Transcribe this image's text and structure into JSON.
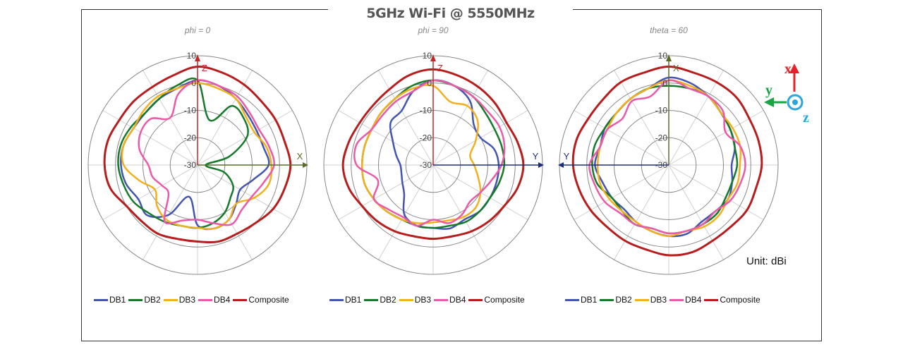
{
  "title": "5GHz Wi-Fi @ 5550MHz",
  "unit_label": "Unit: dBi",
  "colors": {
    "DB1": "#4455b0",
    "DB2": "#167a2a",
    "DB3": "#f2b01e",
    "DB4": "#ea5aa8",
    "Composite": "#b81d1d"
  },
  "coordinate_icon": {
    "x": "x",
    "y": "y",
    "z": "z",
    "x_color": "#e8202a",
    "y_color": "#1aa544",
    "z_color": "#2aa6dd"
  },
  "chart_data": [
    {
      "type": "polar",
      "title": "phi = 0",
      "r_ticks": [
        "10",
        "0",
        "-10",
        "-20",
        "-30"
      ],
      "rlim": [
        -30,
        10
      ],
      "angle_step_deg": 30,
      "axis_up": "Z",
      "axis_side": "X",
      "axis_side_dir": "right",
      "angles": [
        0,
        15,
        30,
        45,
        60,
        75,
        90,
        105,
        120,
        135,
        150,
        165,
        180,
        195,
        210,
        225,
        240,
        255,
        270,
        285,
        300,
        315,
        330,
        345
      ],
      "series": [
        {
          "name": "DB1",
          "values": [
            1,
            0,
            -2,
            -4,
            -5,
            -5,
            -4,
            -9,
            -12,
            -10,
            -7,
            -6,
            -8,
            -18,
            -9,
            -4,
            -5,
            -3,
            -2,
            -2,
            -3,
            -3,
            -2,
            -1
          ]
        },
        {
          "name": "DB2",
          "values": [
            1,
            -13,
            -5,
            -6,
            -9,
            -18,
            -27,
            -20,
            -15,
            -13,
            -10,
            -8,
            -7,
            -7,
            -6,
            -5,
            -3,
            -2,
            -1,
            -1,
            -2,
            -3,
            -2,
            0
          ]
        },
        {
          "name": "DB3",
          "values": [
            0,
            -1,
            -2,
            -5,
            -6,
            -4,
            -3,
            -3,
            -6,
            -10,
            -7,
            -6,
            -7,
            -7,
            -7,
            -9,
            -12,
            -8,
            -3,
            -2,
            -3,
            -2,
            -1,
            -1
          ]
        },
        {
          "name": "DB4",
          "values": [
            1,
            0,
            -1,
            -3,
            -4,
            -3,
            -2,
            -5,
            -7,
            -7,
            -5,
            -8,
            -10,
            -9,
            -6,
            -15,
            -15,
            -13,
            -12,
            -8,
            -6,
            -6,
            -10,
            -3
          ]
        },
        {
          "name": "Composite",
          "values": [
            6,
            5,
            4,
            3,
            3,
            3,
            4,
            3,
            2,
            0,
            -1,
            -1,
            -2,
            -2,
            -1,
            -1,
            0,
            3,
            4,
            4,
            3,
            3,
            3,
            4
          ]
        }
      ]
    },
    {
      "type": "polar",
      "title": "phi = 90",
      "r_ticks": [
        "10",
        "0",
        "-10",
        "-20",
        "-30"
      ],
      "rlim": [
        -30,
        10
      ],
      "angle_step_deg": 30,
      "axis_up": "Z",
      "axis_side": "Y",
      "axis_side_dir": "right",
      "angles": [
        0,
        15,
        30,
        45,
        60,
        75,
        90,
        105,
        120,
        135,
        150,
        165,
        180,
        195,
        210,
        225,
        240,
        255,
        270,
        285,
        300,
        315,
        330,
        345
      ],
      "series": [
        {
          "name": "DB1",
          "values": [
            1,
            0,
            -3,
            -9,
            -10,
            -7,
            -6,
            -6,
            -6,
            -6,
            -7,
            -6,
            -7,
            -7,
            -9,
            -15,
            -17,
            -18,
            -18,
            -16,
            -13,
            -8,
            -7,
            -2
          ]
        },
        {
          "name": "DB2",
          "values": [
            1,
            0,
            -1,
            -3,
            -4,
            -4,
            -4,
            -5,
            -6,
            -6,
            -6,
            -7,
            -7,
            -7,
            -7,
            -6,
            -5,
            -4,
            -4,
            -4,
            -4,
            -3,
            -2,
            0
          ]
        },
        {
          "name": "DB3",
          "values": [
            -1,
            -6,
            -5,
            -7,
            -12,
            -16,
            -15,
            -13,
            -10,
            -8,
            -8,
            -9,
            -9,
            -8,
            -7,
            -6,
            -5,
            -4,
            -4,
            -4,
            -4,
            -3,
            -2,
            -1
          ]
        },
        {
          "name": "DB4",
          "values": [
            1,
            0,
            -1,
            -2,
            -2,
            -3,
            -5,
            -8,
            -10,
            -11,
            -9,
            -8,
            -10,
            -7,
            -8,
            -7,
            -5,
            -9,
            -2,
            -1,
            -4,
            -4,
            -3,
            -2
          ]
        },
        {
          "name": "Composite",
          "values": [
            5,
            4,
            3,
            2,
            1,
            2,
            3,
            2,
            0,
            -1,
            -2,
            -3,
            -3,
            -3,
            -2,
            -1,
            0,
            2,
            3,
            2,
            1,
            1,
            2,
            4
          ]
        }
      ]
    },
    {
      "type": "polar",
      "title": "theta = 60",
      "r_ticks": [
        "10",
        "0",
        "-10",
        "-20",
        "-30"
      ],
      "rlim": [
        -30,
        10
      ],
      "angle_step_deg": 30,
      "axis_up": "X",
      "axis_side": "Y",
      "axis_side_dir": "left",
      "angles": [
        0,
        15,
        30,
        45,
        60,
        75,
        90,
        105,
        120,
        135,
        150,
        165,
        180,
        195,
        210,
        225,
        240,
        255,
        270,
        285,
        300,
        315,
        330,
        345
      ],
      "series": [
        {
          "name": "DB1",
          "values": [
            2,
            1,
            -1,
            -3,
            -4,
            -5,
            -7,
            -6,
            -5,
            -6,
            -6,
            -4,
            -4,
            -5,
            -6,
            -7,
            -6,
            -5,
            -3,
            -4,
            -3,
            -3,
            -2,
            -1
          ]
        },
        {
          "name": "DB2",
          "values": [
            -1,
            -1,
            -1,
            -3,
            -4,
            -5,
            -5,
            -6,
            -6,
            -5,
            -5,
            -5,
            -5,
            -6,
            -5,
            -6,
            -6,
            -3,
            -2,
            -2,
            -3,
            -3,
            -2,
            -1
          ]
        },
        {
          "name": "DB3",
          "values": [
            1,
            0,
            -1,
            -3,
            -3,
            -3,
            -4,
            -4,
            -5,
            -4,
            -4,
            -5,
            -4,
            -5,
            -6,
            -6,
            -5,
            -4,
            -4,
            -4,
            -4,
            -3,
            -2,
            -1
          ]
        },
        {
          "name": "DB4",
          "values": [
            1,
            -1,
            -1,
            -2,
            -6,
            -3,
            -2,
            -3,
            -4,
            -6,
            -5,
            -5,
            -5,
            -6,
            -5,
            -5,
            -3,
            -2,
            -1,
            -4,
            -4,
            -6,
            -3,
            -4
          ]
        },
        {
          "name": "Composite",
          "values": [
            6,
            5,
            5,
            5,
            4,
            4,
            4,
            3,
            3,
            2,
            2,
            3,
            3,
            2,
            2,
            2,
            3,
            4,
            5,
            5,
            4,
            4,
            5,
            5
          ]
        }
      ]
    }
  ]
}
